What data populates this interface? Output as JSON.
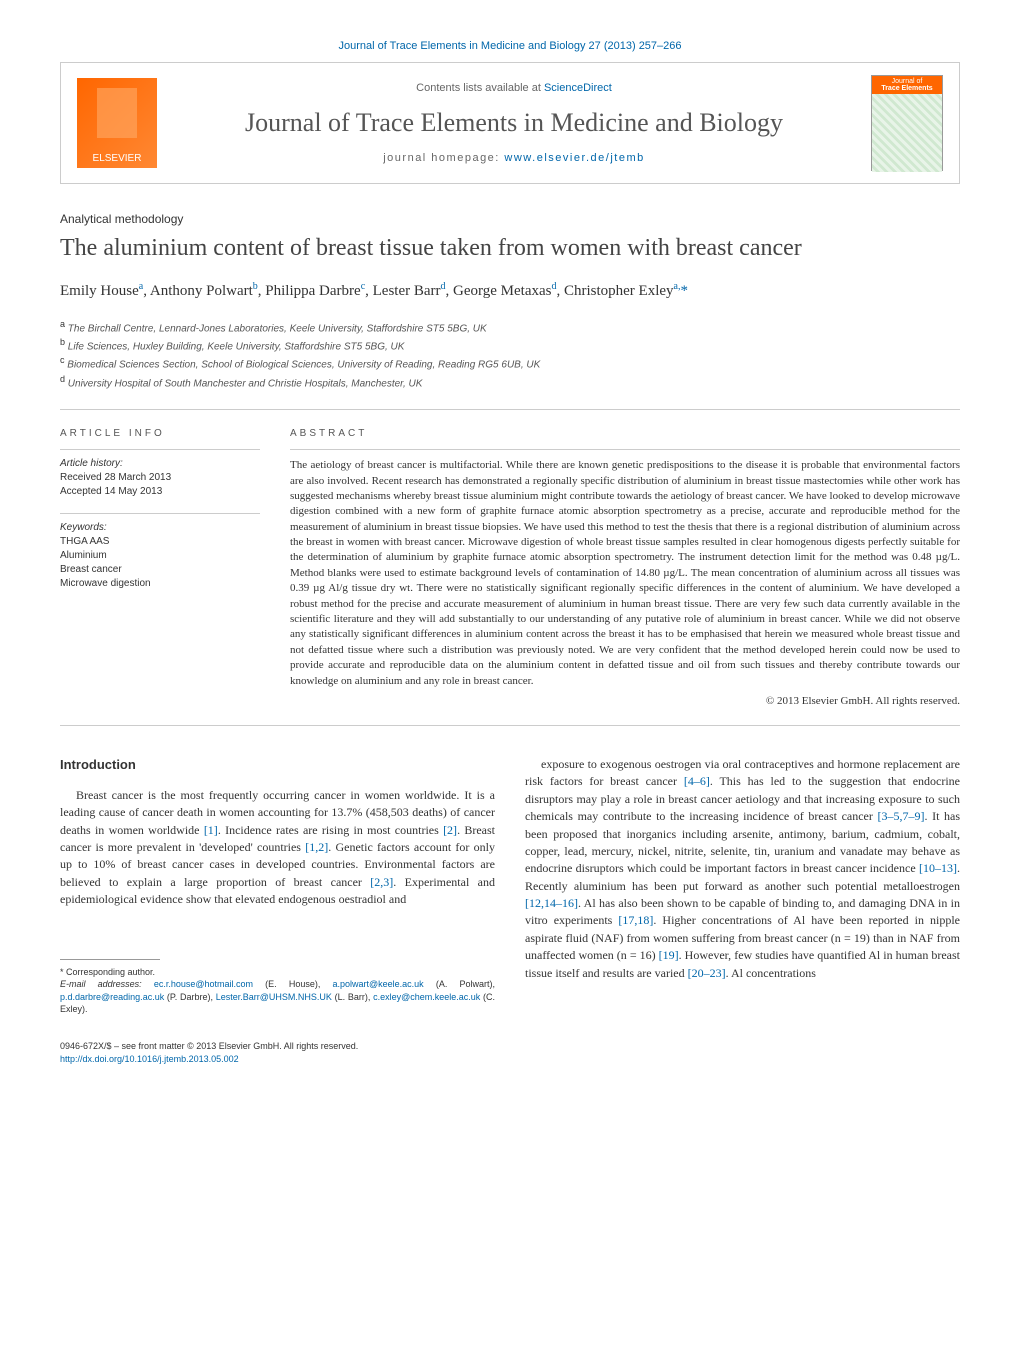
{
  "top_citation": "Journal of Trace Elements in Medicine and Biology 27 (2013) 257–266",
  "header": {
    "elsevier": "ELSEVIER",
    "contents_prefix": "Contents lists available at ",
    "contents_link": "ScienceDirect",
    "journal_name": "Journal of Trace Elements in Medicine and Biology",
    "homepage_prefix": "journal homepage: ",
    "homepage_url": "www.elsevier.de/jtemb",
    "cover_small": "Journal of",
    "cover_big": "Trace Elements"
  },
  "section_label": "Analytical methodology",
  "title": "The aluminium content of breast tissue taken from women with breast cancer",
  "authors_html": "Emily House<sup>a</sup>, Anthony Polwart<sup>b</sup>, Philippa Darbre<sup>c</sup>, Lester Barr<sup>d</sup>, George Metaxas<sup>d</sup>, Christopher Exley<sup>a,</sup><span class='corr'>*</span>",
  "affiliations": {
    "a": "The Birchall Centre, Lennard-Jones Laboratories, Keele University, Staffordshire ST5 5BG, UK",
    "b": "Life Sciences, Huxley Building, Keele University, Staffordshire ST5 5BG, UK",
    "c": "Biomedical Sciences Section, School of Biological Sciences, University of Reading, Reading RG5 6UB, UK",
    "d": "University Hospital of South Manchester and Christie Hospitals, Manchester, UK"
  },
  "article_info": {
    "heading": "ARTICLE INFO",
    "history_label": "Article history:",
    "received": "Received 28 March 2013",
    "accepted": "Accepted 14 May 2013",
    "keywords_label": "Keywords:",
    "keywords": [
      "THGA AAS",
      "Aluminium",
      "Breast cancer",
      "Microwave digestion"
    ]
  },
  "abstract": {
    "heading": "ABSTRACT",
    "text": "The aetiology of breast cancer is multifactorial. While there are known genetic predispositions to the disease it is probable that environmental factors are also involved. Recent research has demonstrated a regionally specific distribution of aluminium in breast tissue mastectomies while other work has suggested mechanisms whereby breast tissue aluminium might contribute towards the aetiology of breast cancer. We have looked to develop microwave digestion combined with a new form of graphite furnace atomic absorption spectrometry as a precise, accurate and reproducible method for the measurement of aluminium in breast tissue biopsies. We have used this method to test the thesis that there is a regional distribution of aluminium across the breast in women with breast cancer. Microwave digestion of whole breast tissue samples resulted in clear homogenous digests perfectly suitable for the determination of aluminium by graphite furnace atomic absorption spectrometry. The instrument detection limit for the method was 0.48 µg/L. Method blanks were used to estimate background levels of contamination of 14.80 µg/L. The mean concentration of aluminium across all tissues was 0.39 µg Al/g tissue dry wt. There were no statistically significant regionally specific differences in the content of aluminium. We have developed a robust method for the precise and accurate measurement of aluminium in human breast tissue. There are very few such data currently available in the scientific literature and they will add substantially to our understanding of any putative role of aluminium in breast cancer. While we did not observe any statistically significant differences in aluminium content across the breast it has to be emphasised that herein we measured whole breast tissue and not defatted tissue where such a distribution was previously noted. We are very confident that the method developed herein could now be used to provide accurate and reproducible data on the aluminium content in defatted tissue and oil from such tissues and thereby contribute towards our knowledge on aluminium and any role in breast cancer.",
    "copyright": "© 2013 Elsevier GmbH. All rights reserved."
  },
  "body": {
    "intro_heading": "Introduction",
    "col1": "Breast cancer is the most frequently occurring cancer in women worldwide. It is a leading cause of cancer death in women accounting for 13.7% (458,503 deaths) of cancer deaths in women worldwide <span class='ref-link'>[1]</span>. Incidence rates are rising in most countries <span class='ref-link'>[2]</span>. Breast cancer is more prevalent in 'developed' countries <span class='ref-link'>[1,2]</span>. Genetic factors account for only up to 10% of breast cancer cases in developed countries. Environmental factors are believed to explain a large proportion of breast cancer <span class='ref-link'>[2,3]</span>. Experimental and epidemiological evidence show that elevated endogenous oestradiol and",
    "col2": "exposure to exogenous oestrogen via oral contraceptives and hormone replacement are risk factors for breast cancer <span class='ref-link'>[4–6]</span>. This has led to the suggestion that endocrine disruptors may play a role in breast cancer aetiology and that increasing exposure to such chemicals may contribute to the increasing incidence of breast cancer <span class='ref-link'>[3–5,7–9]</span>. It has been proposed that inorganics including arsenite, antimony, barium, cadmium, cobalt, copper, lead, mercury, nickel, nitrite, selenite, tin, uranium and vanadate may behave as endocrine disruptors which could be important factors in breast cancer incidence <span class='ref-link'>[10–13]</span>. Recently aluminium has been put forward as another such potential metalloestrogen <span class='ref-link'>[12,14–16]</span>. Al has also been shown to be capable of binding to, and damaging DNA in in vitro experiments <span class='ref-link'>[17,18]</span>. Higher concentrations of Al have been reported in nipple aspirate fluid (NAF) from women suffering from breast cancer (n = 19) than in NAF from unaffected women (n = 16) <span class='ref-link'>[19]</span>. However, few studies have quantified Al in human breast tissue itself and results are varied <span class='ref-link'>[20–23]</span>. Al concentrations"
  },
  "footnote": {
    "corr_label": "* Corresponding author.",
    "email_label": "E-mail addresses:",
    "emails": [
      {
        "addr": "ec.r.house@hotmail.com",
        "who": "(E. House)"
      },
      {
        "addr": "a.polwart@keele.ac.uk",
        "who": "(A. Polwart)"
      },
      {
        "addr": "p.d.darbre@reading.ac.uk",
        "who": "(P. Darbre)"
      },
      {
        "addr": "Lester.Barr@UHSM.NHS.UK",
        "who": "(L. Barr)"
      },
      {
        "addr": "c.exley@chem.keele.ac.uk",
        "who": "(C. Exley)"
      }
    ]
  },
  "footer": {
    "issn_line": "0946-672X/$ – see front matter © 2013 Elsevier GmbH. All rights reserved.",
    "doi": "http://dx.doi.org/10.1016/j.jtemb.2013.05.002"
  },
  "colors": {
    "link": "#0066aa",
    "text": "#333333",
    "border": "#cccccc",
    "elsevier_orange": "#ff6600"
  }
}
